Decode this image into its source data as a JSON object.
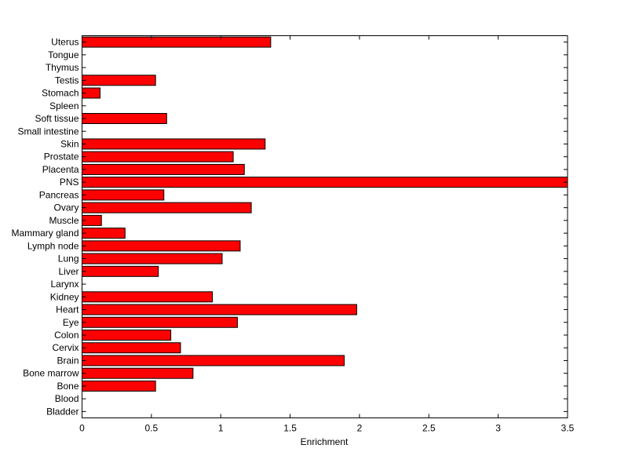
{
  "chart_data": {
    "type": "bar",
    "orientation": "horizontal",
    "title": "",
    "xlabel": "Enrichment",
    "ylabel": "",
    "xlim": [
      0,
      3.5
    ],
    "xticks": [
      "0",
      "0.5",
      "1",
      "1.5",
      "2",
      "2.5",
      "3",
      "3.5"
    ],
    "grid": false,
    "bar_color": "#ff0000",
    "categories": [
      "Bladder",
      "Blood",
      "Bone",
      "Bone marrow",
      "Brain",
      "Cervix",
      "Colon",
      "Eye",
      "Heart",
      "Kidney",
      "Larynx",
      "Liver",
      "Lung",
      "Lymph node",
      "Mammary gland",
      "Muscle",
      "Ovary",
      "Pancreas",
      "PNS",
      "Placenta",
      "Prostate",
      "Skin",
      "Small intestine",
      "Soft tissue",
      "Spleen",
      "Stomach",
      "Testis",
      "Thymus",
      "Tongue",
      "Uterus"
    ],
    "values": [
      0,
      0,
      0.53,
      0.8,
      1.89,
      0.71,
      0.64,
      1.12,
      1.98,
      0.94,
      0,
      0.55,
      1.01,
      1.14,
      0.31,
      0.14,
      1.22,
      0.59,
      3.5,
      1.17,
      1.09,
      1.32,
      0,
      0.61,
      0,
      0.13,
      0.53,
      0,
      0,
      1.36
    ]
  }
}
